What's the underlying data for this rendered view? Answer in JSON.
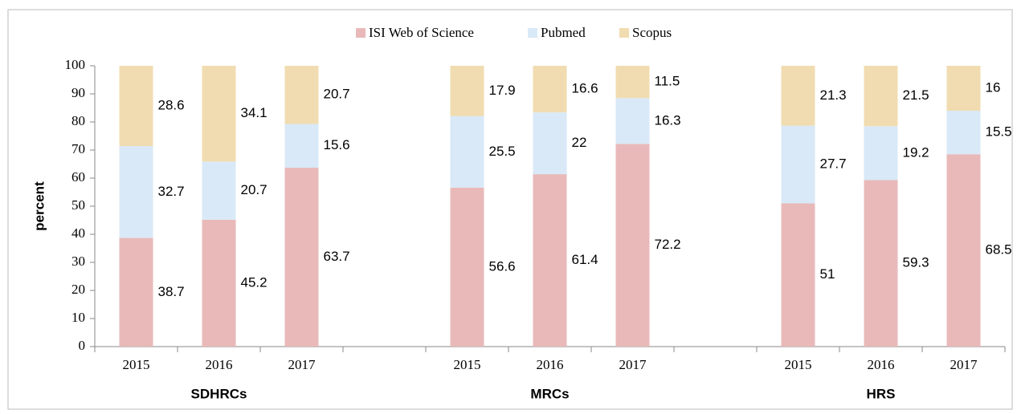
{
  "chart_data": {
    "type": "stacked_bar",
    "categories": [
      "2015",
      "2016",
      "2017",
      null,
      "2015",
      "2016",
      "2017",
      null,
      "2015",
      "2016",
      "2017"
    ],
    "group_labels": [
      null,
      "SDHRCs",
      null,
      null,
      null,
      "MRCs",
      null,
      null,
      null,
      "HRS",
      null
    ],
    "series": [
      {
        "name": "ISI Web of Science",
        "color": "#e9b9b9",
        "values": [
          38.7,
          45.2,
          63.7,
          null,
          56.6,
          61.4,
          72.2,
          null,
          51,
          59.3,
          68.5
        ]
      },
      {
        "name": "Pubmed",
        "color": "#d9e9f7",
        "values": [
          32.7,
          20.7,
          15.6,
          null,
          25.5,
          22,
          16.3,
          null,
          27.7,
          19.2,
          15.5
        ]
      },
      {
        "name": "Scopus",
        "color": "#f0dcb0",
        "values": [
          28.6,
          34.1,
          20.7,
          null,
          17.9,
          16.6,
          11.5,
          null,
          21.3,
          21.5,
          16
        ]
      }
    ],
    "ylabel": "percent",
    "ylim": [
      0,
      100
    ],
    "yticks": [
      0,
      10,
      20,
      30,
      40,
      50,
      60,
      70,
      80,
      90,
      100
    ],
    "legend": "top"
  }
}
